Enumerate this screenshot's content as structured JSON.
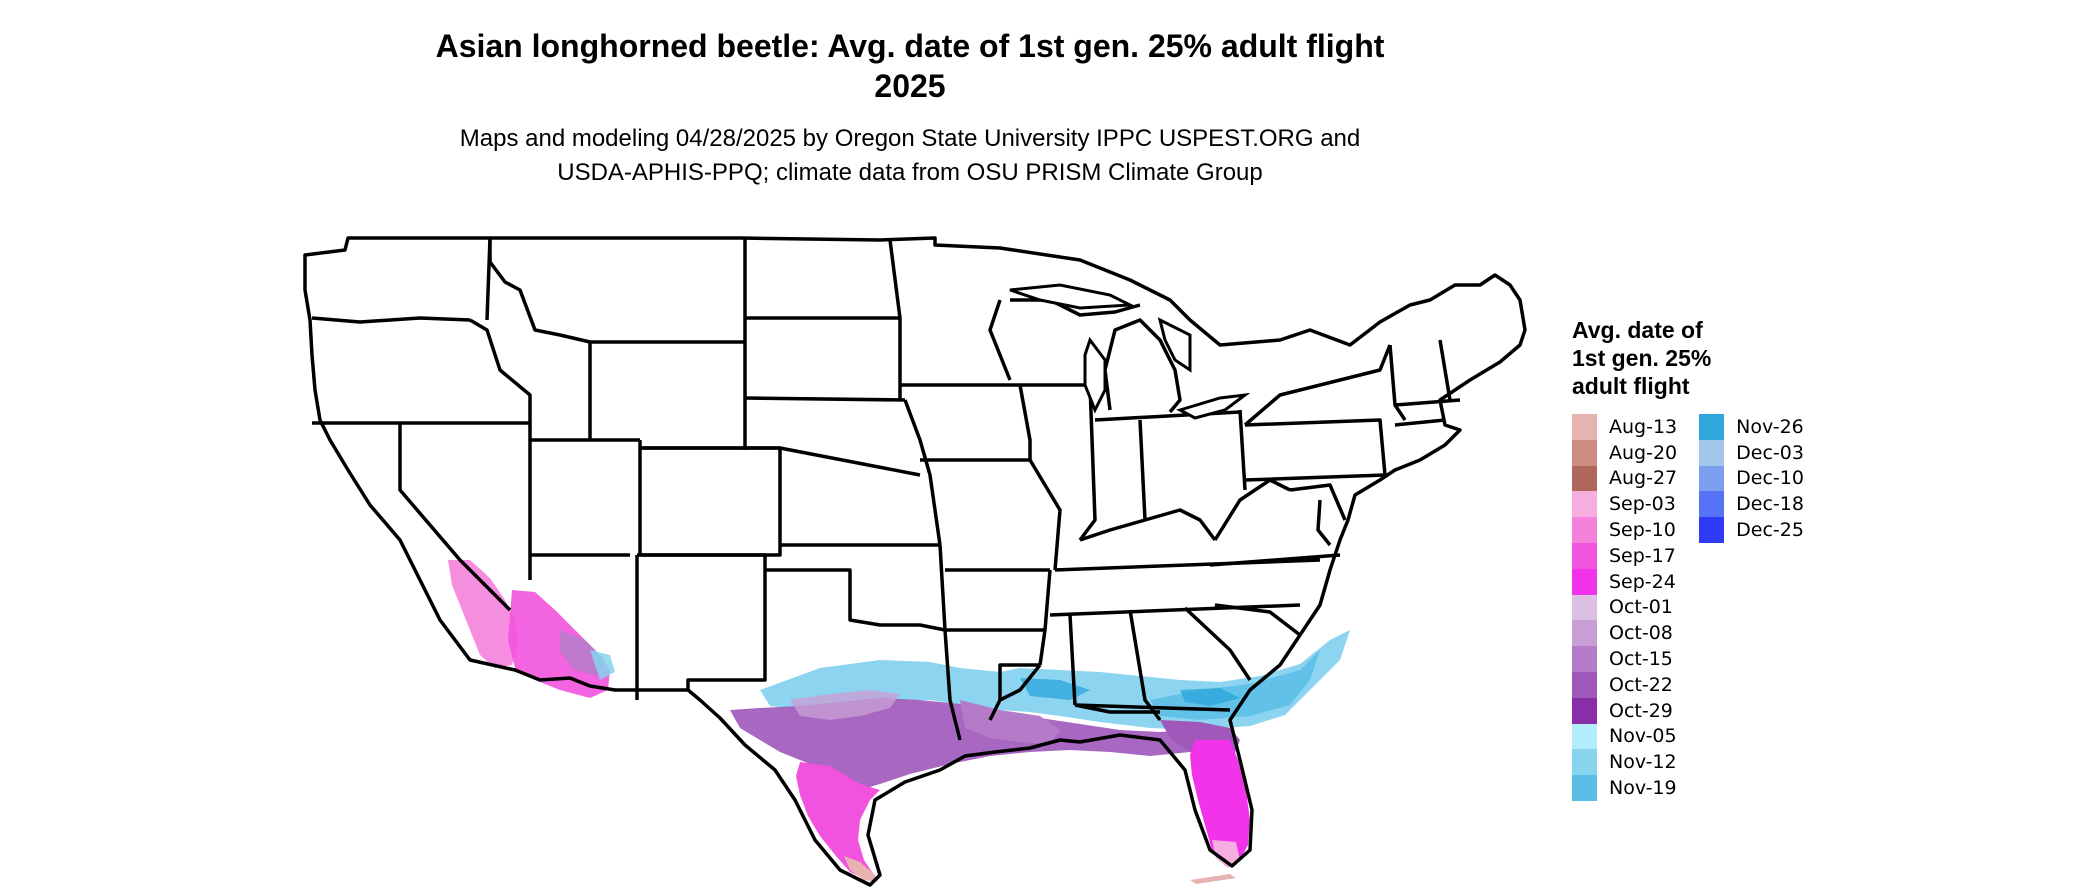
{
  "title_line1": "Asian longhorned beetle: Avg. date of 1st gen. 25% adult flight",
  "title_line2": "2025",
  "subtitle_line1": "Maps and modeling 04/28/2025 by Oregon State University IPPC USPEST.ORG and",
  "subtitle_line2": "USDA-APHIS-PPQ; climate data from OSU PRISM Climate Group",
  "legend": {
    "title_line1": "Avg. date of",
    "title_line2": "1st gen. 25%",
    "title_line3": "adult flight",
    "items": [
      {
        "label": "Aug-13",
        "color": "#e6b3b0"
      },
      {
        "label": "Aug-20",
        "color": "#cc8c82"
      },
      {
        "label": "Aug-27",
        "color": "#b0665a"
      },
      {
        "label": "Sep-03",
        "color": "#f5aedf"
      },
      {
        "label": "Sep-10",
        "color": "#f482dc"
      },
      {
        "label": "Sep-17",
        "color": "#f253de"
      },
      {
        "label": "Sep-24",
        "color": "#f233ea"
      },
      {
        "label": "Oct-01",
        "color": "#dcc0e4"
      },
      {
        "label": "Oct-08",
        "color": "#c89fd4"
      },
      {
        "label": "Oct-15",
        "color": "#b47cc8"
      },
      {
        "label": "Oct-22",
        "color": "#9f57ba"
      },
      {
        "label": "Oct-29",
        "color": "#8a2da8"
      },
      {
        "label": "Nov-05",
        "color": "#b3ecfa"
      },
      {
        "label": "Nov-12",
        "color": "#86d4ee"
      },
      {
        "label": "Nov-19",
        "color": "#5bbde6"
      },
      {
        "label": "Nov-26",
        "color": "#2fa6dc"
      },
      {
        "label": "Dec-03",
        "color": "#a1c6ea"
      },
      {
        "label": "Dec-10",
        "color": "#7c9ef0"
      },
      {
        "label": "Dec-18",
        "color": "#5773f5"
      },
      {
        "label": "Dec-25",
        "color": "#2f3af7"
      }
    ]
  }
}
